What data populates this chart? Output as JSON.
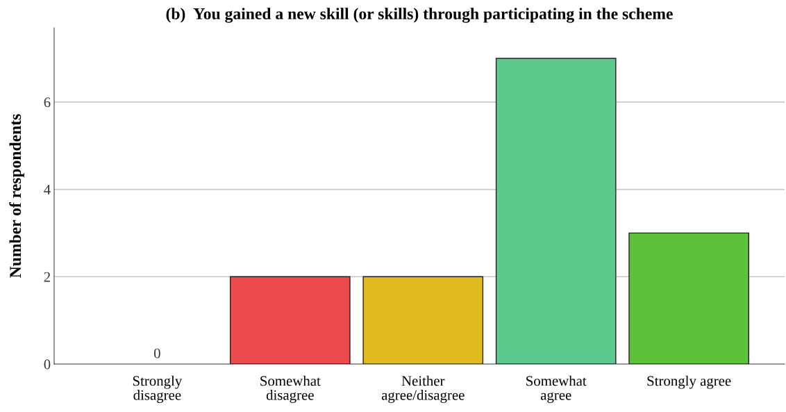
{
  "chart_data": {
    "type": "bar",
    "title": "(b)  You gained a new skill (or skills) through participating in the scheme",
    "ylabel": "Number of respondents",
    "categories": [
      "Strongly\ndisagree",
      "Somewhat\ndisagree",
      "Neither\nagree/disagree",
      "Somewhat\nagree",
      "Strongly agree"
    ],
    "values": [
      0,
      2,
      2,
      7,
      3
    ],
    "colors": [
      "#ffffff",
      "#ec4a4d",
      "#dfbb20",
      "#5cc98c",
      "#5cc23a"
    ],
    "value_labels": [
      "0",
      null,
      null,
      null,
      null
    ],
    "ylim": [
      0,
      7.7
    ],
    "yticks": [
      0,
      2,
      4,
      6
    ],
    "grid": "y"
  }
}
